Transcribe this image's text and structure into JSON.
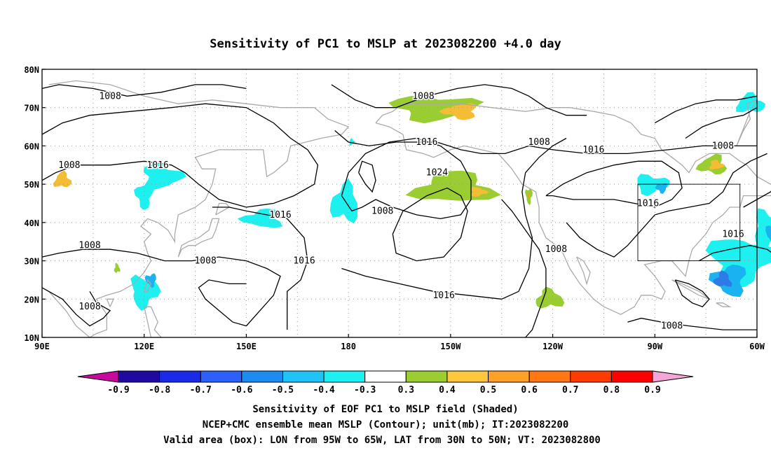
{
  "title": "Sensitivity of PC1 to MSLP at 2023082200 +4.0 day",
  "map": {
    "lat_labels": [
      "80N",
      "70N",
      "60N",
      "50N",
      "40N",
      "30N",
      "20N",
      "10N"
    ],
    "lon_labels": [
      "90E",
      "120E",
      "150E",
      "180",
      "150W",
      "120W",
      "90W",
      "60W"
    ],
    "lon_range": [
      90,
      300
    ],
    "lat_range": [
      10,
      80
    ],
    "grid": "dotted",
    "valid_box": {
      "lon": [
        265,
        295
      ],
      "lat": [
        30,
        50
      ]
    },
    "isobar_labels": [
      {
        "text": "1008",
        "lon": 110,
        "lat": 73
      },
      {
        "text": "1008",
        "lon": 98,
        "lat": 55
      },
      {
        "text": "1016",
        "lon": 124,
        "lat": 55
      },
      {
        "text": "1016",
        "lon": 160,
        "lat": 42
      },
      {
        "text": "1008",
        "lon": 104,
        "lat": 34
      },
      {
        "text": "1008",
        "lon": 138,
        "lat": 30
      },
      {
        "text": "1016",
        "lon": 167,
        "lat": 30
      },
      {
        "text": "1008",
        "lon": 104,
        "lat": 18
      },
      {
        "text": "1008",
        "lon": 202,
        "lat": 73
      },
      {
        "text": "1016",
        "lon": 203,
        "lat": 61
      },
      {
        "text": "1024",
        "lon": 206,
        "lat": 53
      },
      {
        "text": "1008",
        "lon": 190,
        "lat": 43
      },
      {
        "text": "1016",
        "lon": 208,
        "lat": 21
      },
      {
        "text": "1008",
        "lon": 236,
        "lat": 61
      },
      {
        "text": "1016",
        "lon": 252,
        "lat": 59
      },
      {
        "text": "1008",
        "lon": 241,
        "lat": 33
      },
      {
        "text": "1016",
        "lon": 268,
        "lat": 45
      },
      {
        "text": "1008",
        "lon": 290,
        "lat": 60
      },
      {
        "text": "1016",
        "lon": 293,
        "lat": 37
      },
      {
        "text": "1008",
        "lon": 275,
        "lat": 13
      }
    ],
    "shaded_blobs": [
      {
        "cls": "0.4",
        "lon": 96,
        "lat": 51,
        "rx": 3,
        "ry": 2.5
      },
      {
        "cls": "-0.4",
        "lon": 125,
        "lat": 52,
        "rx": 7,
        "ry": 4
      },
      {
        "cls": "-0.4",
        "lon": 120,
        "lat": 47,
        "rx": 3,
        "ry": 4
      },
      {
        "cls": "-0.4",
        "lon": 155,
        "lat": 41,
        "rx": 7,
        "ry": 3
      },
      {
        "cls": "0.3",
        "lon": 112,
        "lat": 28,
        "rx": 1,
        "ry": 1.5
      },
      {
        "cls": "-0.4",
        "lon": 120,
        "lat": 22,
        "rx": 5,
        "ry": 5
      },
      {
        "cls": "-0.5",
        "lon": 122,
        "lat": 25,
        "rx": 2,
        "ry": 2
      },
      {
        "cls": "-0.4",
        "lon": 179,
        "lat": 45,
        "rx": 5,
        "ry": 6
      },
      {
        "cls": "-0.4",
        "lon": 181,
        "lat": 61,
        "rx": 1,
        "ry": 1
      },
      {
        "cls": "0.3",
        "lon": 205,
        "lat": 70,
        "rx": 15,
        "ry": 4
      },
      {
        "cls": "0.4",
        "lon": 213,
        "lat": 69,
        "rx": 6,
        "ry": 2.5
      },
      {
        "cls": "0.3",
        "lon": 211,
        "lat": 49,
        "rx": 14,
        "ry": 5
      },
      {
        "cls": "0.4",
        "lon": 218,
        "lat": 48,
        "rx": 3,
        "ry": 1.5
      },
      {
        "cls": "0.3",
        "lon": 233,
        "lat": 47,
        "rx": 1.2,
        "ry": 2.5
      },
      {
        "cls": "0.5",
        "lon": 233,
        "lat": 47,
        "rx": 0.4,
        "ry": 0.8
      },
      {
        "cls": "0.3",
        "lon": 239,
        "lat": 20,
        "rx": 5,
        "ry": 3
      },
      {
        "cls": "-0.4",
        "lon": 269,
        "lat": 50,
        "rx": 6,
        "ry": 3
      },
      {
        "cls": "-0.5",
        "lon": 272,
        "lat": 49,
        "rx": 2,
        "ry": 1.5
      },
      {
        "cls": "0.3",
        "lon": 287,
        "lat": 55,
        "rx": 5,
        "ry": 3
      },
      {
        "cls": "0.4",
        "lon": 288,
        "lat": 55,
        "rx": 2.5,
        "ry": 1.5
      },
      {
        "cls": "-0.4",
        "lon": 295,
        "lat": 30,
        "rx": 11,
        "ry": 8
      },
      {
        "cls": "-0.5",
        "lon": 292,
        "lat": 25,
        "rx": 6,
        "ry": 5
      },
      {
        "cls": "-0.6",
        "lon": 290,
        "lat": 25,
        "rx": 3,
        "ry": 2.5
      },
      {
        "cls": "-0.4",
        "lon": 303,
        "lat": 38,
        "rx": 5,
        "ry": 6
      },
      {
        "cls": "-0.5",
        "lon": 305,
        "lat": 37,
        "rx": 3,
        "ry": 3
      },
      {
        "cls": "-0.6",
        "lon": 306,
        "lat": 37,
        "rx": 1.5,
        "ry": 1.5
      },
      {
        "cls": "-0.4",
        "lon": 298,
        "lat": 71,
        "rx": 5,
        "ry": 3
      }
    ]
  },
  "colorbar": {
    "labels": [
      "-0.9",
      "-0.8",
      "-0.7",
      "-0.6",
      "-0.5",
      "-0.4",
      "-0.3",
      "0.3",
      "0.4",
      "0.5",
      "0.6",
      "0.7",
      "0.8",
      "0.9"
    ],
    "colors": [
      "#c8099e",
      "#1e0aa0",
      "#1a2be8",
      "#2e5ffa",
      "#1d8cf0",
      "#20c3f5",
      "#1df0f0",
      "#ffffff",
      "#9acd32",
      "#ffc83c",
      "#ffa028",
      "#ff7814",
      "#ff3c00",
      "#ff0000",
      "#f4a6d8"
    ],
    "class_colors": {
      "-0.6": "#2e7be8",
      "-0.5": "#1ab2f0",
      "-0.4": "#1ef0f0",
      "0.3": "#9acd32",
      "0.4": "#f5bd36",
      "0.5": "#ff9a2a"
    }
  },
  "caption": {
    "line1": "Sensitivity of EOF PC1 to MSLP field (Shaded)",
    "line2": "NCEP+CMC ensemble mean MSLP (Contour); unit(mb); IT:2023082200",
    "line3": "Valid area (box): LON from 95W to 65W, LAT from 30N to 50N; VT: 2023082800"
  }
}
